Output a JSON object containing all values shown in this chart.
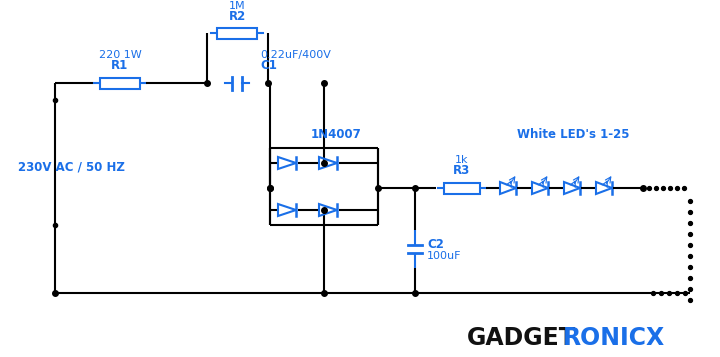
{
  "bg_color": "#ffffff",
  "line_color": "#000000",
  "blue": "#1a6fe8",
  "labels": {
    "ac_source": "230V AC / 50 HZ",
    "r1": "R1",
    "r1_val": "220 1W",
    "r2": "R2",
    "r2_val": "1M",
    "c1": "C1",
    "c1_val": "0.22uF/400V",
    "diode_label": "1N4007",
    "r3": "R3",
    "r3_val": "1k",
    "c2": "C2",
    "c2_val": "100uF",
    "led_label": "White LED's 1-25",
    "brand1": "GADGET",
    "brand2": "RONICX"
  }
}
